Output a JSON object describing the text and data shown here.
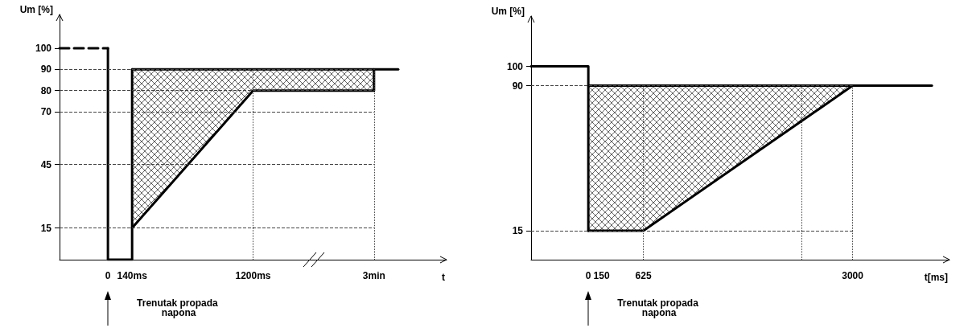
{
  "chart_data": [
    {
      "type": "line",
      "ylabel": "Um [%]",
      "xlabel": "t",
      "marker": "none",
      "categories": [
        null,
        null,
        "0",
        "140ms",
        null,
        null,
        null,
        null,
        "1200ms",
        null,
        null,
        null,
        null,
        "3min",
        null,
        null,
        null
      ],
      "ylim": [
        0,
        116
      ],
      "yticks": [
        15,
        45,
        70,
        80,
        90,
        100
      ],
      "series": [
        {
          "color": "#000000",
          "line_style": "dashed",
          "values": [
            100,
            null,
            100,
            null,
            null,
            null,
            null,
            null,
            null,
            null,
            null,
            null,
            null,
            null,
            null,
            null,
            null
          ]
        },
        {
          "color": "#000000",
          "x": [
            "0",
            "0",
            "140ms",
            "140ms"
          ],
          "values": [
            100,
            0,
            0,
            90
          ]
        },
        {
          "color": "#000000",
          "values": [
            null,
            null,
            null,
            90,
            null,
            null,
            null,
            null,
            null,
            null,
            null,
            null,
            null,
            90,
            90,
            null,
            null
          ]
        },
        {
          "color": "#000000",
          "x": [
            "140ms",
            "1200ms",
            "3min",
            "3min"
          ],
          "values": [
            15,
            80,
            80,
            90
          ],
          "lower": [
            15,
            80,
            80,
            90
          ],
          "upper": [
            90,
            90,
            90,
            90
          ]
        }
      ],
      "ref_lines": [
        {
          "axis": "x",
          "value": "1200ms",
          "line_style": "dotted",
          "color": "#444444"
        },
        {
          "axis": "x",
          "value": "3min",
          "line_style": "dotted",
          "color": "#444444"
        },
        {
          "axis": "y",
          "value": 90,
          "line_style": "dashed",
          "color": "#444444"
        },
        {
          "axis": "y",
          "value": 80,
          "line_style": "dashed",
          "color": "#444444"
        },
        {
          "axis": "y",
          "value": 70,
          "line_style": "dashed",
          "color": "#444444"
        },
        {
          "axis": "y",
          "value": 45,
          "line_style": "dashed",
          "color": "#444444"
        },
        {
          "axis": "y",
          "value": 15,
          "line_style": "dashed",
          "color": "#444444"
        }
      ],
      "annotations": [
        "Trenutak propada napona"
      ]
    },
    {
      "type": "line",
      "ylabel": "Um [%]",
      "xlabel": "t[ms]",
      "marker": "none",
      "xlim": [
        -650,
        4100
      ],
      "xticks": [
        0,
        150,
        625,
        3000
      ],
      "ylim": [
        0,
        126
      ],
      "yticks": [
        15,
        90,
        100
      ],
      "series": [
        {
          "color": "#000000",
          "x": [
            -650,
            0,
            0,
            0
          ],
          "values": [
            100,
            100,
            90,
            15
          ]
        },
        {
          "color": "#000000",
          "x": [
            0,
            625,
            3000,
            3900
          ],
          "values": [
            90,
            90,
            90,
            90
          ]
        },
        {
          "color": "#000000",
          "x": [
            0,
            625,
            3000
          ],
          "values": [
            15,
            15,
            90
          ],
          "lower": [
            15,
            15,
            90
          ],
          "upper": [
            90,
            90,
            90
          ]
        }
      ],
      "ref_lines": [
        {
          "axis": "x",
          "value": 625,
          "line_style": "dotted",
          "color": "#444444"
        },
        {
          "axis": "x",
          "value": 2420,
          "line_style": "dotted",
          "color": "#444444"
        },
        {
          "axis": "x",
          "value": 3000,
          "line_style": "dotted",
          "color": "#444444"
        },
        {
          "axis": "y",
          "value": 90,
          "line_style": "dashed",
          "color": "#444444"
        },
        {
          "axis": "y",
          "value": 15,
          "line_style": "dashed",
          "color": "#444444"
        }
      ],
      "annotations": [
        "Trenutak propada napona"
      ]
    }
  ]
}
